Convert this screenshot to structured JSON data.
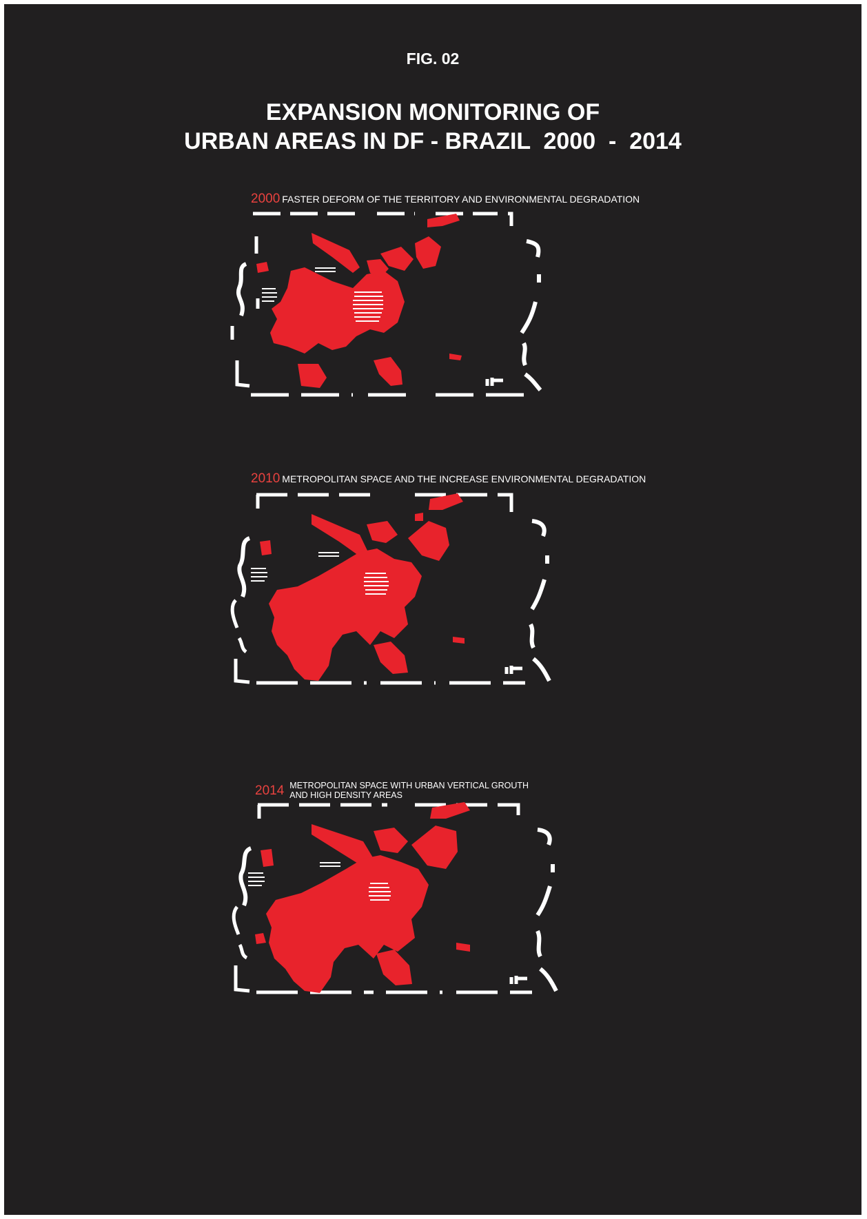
{
  "figure_label": "FIG. 02",
  "title_line1": "EXPANSION MONITORING OF",
  "title_line2": "URBAN AREAS IN DF - BRAZIL  2000  -  2014",
  "colors": {
    "background": "#211f20",
    "urban": "#e8232c",
    "accent_year": "#e8423f",
    "boundary": "#ffffff"
  },
  "panels": [
    {
      "year": "2000",
      "caption": "FASTER DEFORM OF THE TERRITORY AND ENVIRONMENTAL DEGRADATION"
    },
    {
      "year": "2010",
      "caption": "METROPOLITAN SPACE AND THE INCREASE ENVIRONMENTAL DEGRADATION"
    },
    {
      "year": "2014",
      "caption_line1": "METROPOLITAN SPACE WITH URBAN VERTICAL GROUTH",
      "caption_line2": "AND HIGH DENSITY AREAS"
    }
  ],
  "footer_line1": "",
  "footer_line2": ""
}
